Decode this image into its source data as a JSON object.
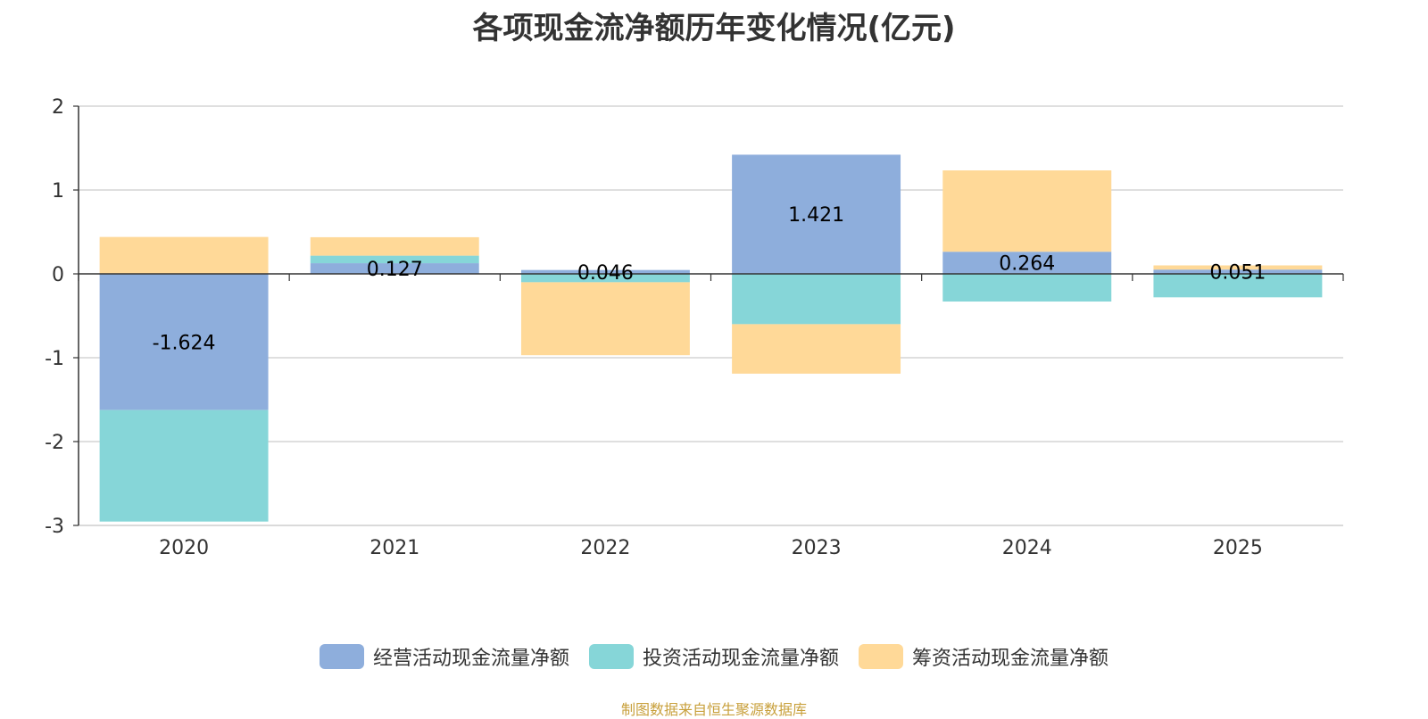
{
  "chart_data": {
    "type": "bar",
    "stacked": true,
    "title": "各项现金流净额历年变化情况(亿元)",
    "categories": [
      "2020",
      "2021",
      "2022",
      "2023",
      "2024",
      "2025"
    ],
    "series": [
      {
        "name": "经营活动现金流量净额",
        "color": "#8eaedc",
        "values": [
          -1.624,
          0.127,
          0.046,
          1.421,
          0.264,
          0.051
        ],
        "labels": [
          "-1.624",
          "0.127",
          "0.046",
          "1.421",
          "0.264",
          "0.051"
        ]
      },
      {
        "name": "投资活动现金流量净额",
        "color": "#86d6d8",
        "values": [
          -1.33,
          0.09,
          -0.1,
          -0.6,
          -0.33,
          -0.28
        ]
      },
      {
        "name": "筹资活动现金流量净额",
        "color": "#ffd998",
        "values": [
          0.44,
          0.22,
          -0.87,
          -0.59,
          0.97,
          0.05
        ]
      }
    ],
    "ylim": [
      -3,
      2
    ],
    "yticks": [
      "2",
      "1",
      "0",
      "-1",
      "-2",
      "-3"
    ],
    "legend_position": "bottom",
    "grid": true
  },
  "source": "制图数据来自恒生聚源数据库"
}
